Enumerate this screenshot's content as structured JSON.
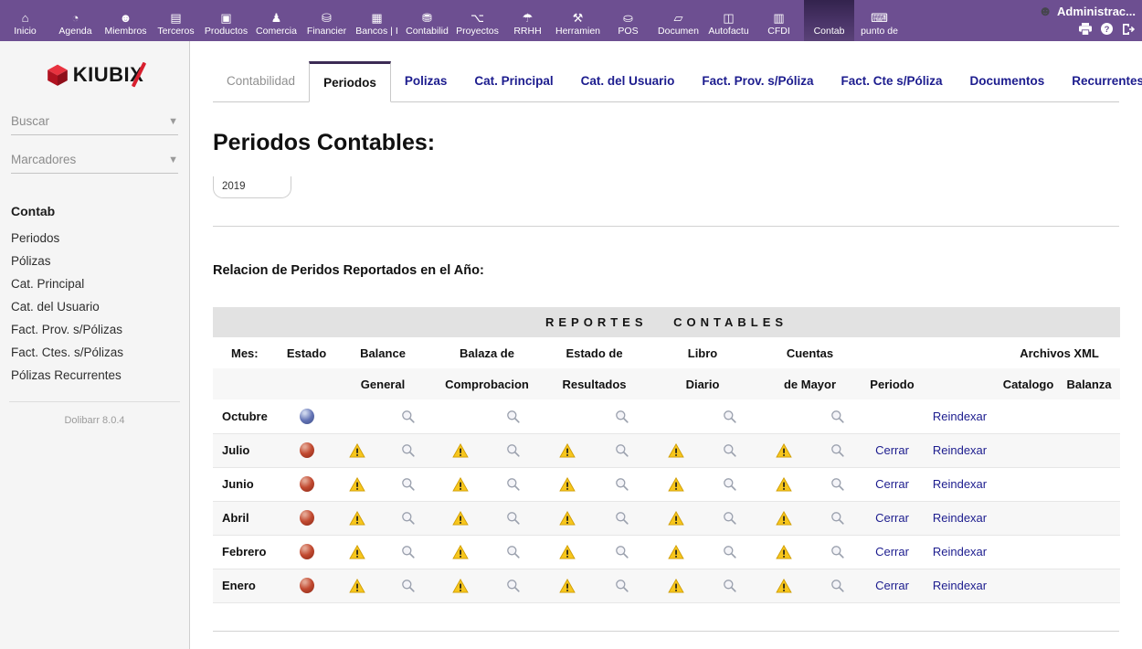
{
  "topnav": {
    "user_name": "Administrac...",
    "items": [
      {
        "label": "Inicio",
        "icon": "home-icon",
        "glyph": "⌂"
      },
      {
        "label": "Agenda",
        "icon": "agenda-icon",
        "glyph": "◔"
      },
      {
        "label": "Miembros",
        "icon": "members-icon",
        "glyph": "☻"
      },
      {
        "label": "Terceros",
        "icon": "third-parties-icon",
        "glyph": "▤"
      },
      {
        "label": "Productos",
        "icon": "products-icon",
        "glyph": "▣"
      },
      {
        "label": "Comercia",
        "icon": "commerce-icon",
        "glyph": "♟"
      },
      {
        "label": "Financier",
        "icon": "finance-icon",
        "glyph": "⛁"
      },
      {
        "label": "Bancos | I",
        "icon": "banks-icon",
        "glyph": "▦"
      },
      {
        "label": "Contabilid",
        "icon": "accounting-icon",
        "glyph": "⛃"
      },
      {
        "label": "Proyectos",
        "icon": "projects-icon",
        "glyph": "⌥"
      },
      {
        "label": "RRHH",
        "icon": "hr-icon",
        "glyph": "☂"
      },
      {
        "label": "Herramien",
        "icon": "tools-icon",
        "glyph": "⚒"
      },
      {
        "label": "POS",
        "icon": "pos-icon",
        "glyph": "⛀"
      },
      {
        "label": "Documen",
        "icon": "documents-icon",
        "glyph": "▱"
      },
      {
        "label": "Autofactu",
        "icon": "autoinvoice-icon",
        "glyph": "◫"
      },
      {
        "label": "CFDI",
        "icon": "cfdi-icon",
        "glyph": "▥"
      },
      {
        "label": "Contab",
        "icon": "contab-icon",
        "glyph": "",
        "active": true
      },
      {
        "label": "punto de",
        "icon": "pos-terminal-icon",
        "glyph": "⌨"
      }
    ]
  },
  "sidebar": {
    "logo": {
      "text_main": "KIUBI",
      "text_x": "X"
    },
    "search_label": "Buscar",
    "bookmarks_label": "Marcadores",
    "section_title": "Contab",
    "items": [
      "Periodos",
      "Pólizas",
      "Cat. Principal",
      "Cat. del Usuario",
      "Fact. Prov. s/Pólizas",
      "Fact. Ctes. s/Pólizas",
      "Pólizas Recurrentes"
    ],
    "version": "Dolibarr 8.0.4"
  },
  "tabs": [
    {
      "label": "Contabilidad",
      "state": "inactive"
    },
    {
      "label": "Periodos",
      "state": "active"
    },
    {
      "label": "Polizas",
      "state": "link"
    },
    {
      "label": "Cat. Principal",
      "state": "link"
    },
    {
      "label": "Cat. del Usuario",
      "state": "link"
    },
    {
      "label": "Fact. Prov. s/Póliza",
      "state": "link"
    },
    {
      "label": "Fact. Cte s/Póliza",
      "state": "link"
    },
    {
      "label": "Documentos",
      "state": "link"
    },
    {
      "label": "Recurrentes",
      "state": "link"
    }
  ],
  "content": {
    "title": "Periodos Contables:",
    "year_value": "2019",
    "relation_title": "Relacion de Peridos Reportados en el Año:"
  },
  "table": {
    "band_title": "REPORTES CONTABLES",
    "header_row1": {
      "mes": "Mes:",
      "estado": "Estado",
      "balance": "Balance",
      "balaza": "Balaza de",
      "estado_de": "Estado de",
      "libro": "Libro",
      "cuentas": "Cuentas",
      "archivos": "Archivos XML"
    },
    "header_row2": {
      "general": "General",
      "comprobacion": "Comprobacion",
      "resultados": "Resultados",
      "diario": "Diario",
      "de_mayor": "de Mayor",
      "periodo": "Periodo",
      "catalogo": "Catalogo",
      "balanza": "Balanza"
    },
    "actions": {
      "cerrar": "Cerrar",
      "reindexar": "Reindexar"
    },
    "rows": [
      {
        "month": "Octubre",
        "status_color": "blue",
        "has_warnings": false,
        "has_cerrar": false
      },
      {
        "month": "Julio",
        "status_color": "red",
        "has_warnings": true,
        "has_cerrar": true
      },
      {
        "month": "Junio",
        "status_color": "red",
        "has_warnings": true,
        "has_cerrar": true
      },
      {
        "month": "Abril",
        "status_color": "red",
        "has_warnings": true,
        "has_cerrar": true
      },
      {
        "month": "Febrero",
        "status_color": "red",
        "has_warnings": true,
        "has_cerrar": true
      },
      {
        "month": "Enero",
        "status_color": "red",
        "has_warnings": true,
        "has_cerrar": true
      }
    ]
  },
  "colors": {
    "nav_purple": "#6d4f91",
    "nav_active_dark": "#33234d",
    "link_navy": "#1c1c8e",
    "brand_red": "#d81f2e",
    "band_gray": "#e2e2e2",
    "row_stripe": "#f7f7f7",
    "status_red": "#b03a28",
    "status_blue": "#6272b4",
    "warning_yellow": "#f7c61c"
  }
}
